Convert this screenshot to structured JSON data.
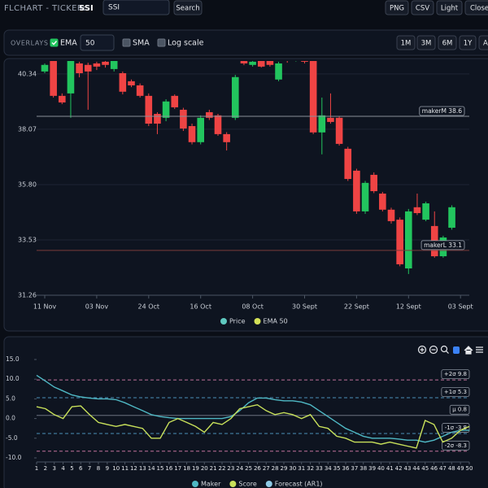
{
  "header": {
    "brand": "FLCHART - TICKER:",
    "ticker": "SSI",
    "search_value": "SSI",
    "search_button": "Search",
    "buttons": [
      "PNG",
      "CSV",
      "Light",
      "Close ("
    ]
  },
  "overlays": {
    "label": "OVERLAYS",
    "ema": {
      "label": "EMA",
      "checked": true,
      "period": "50"
    },
    "sma": {
      "label": "SMA",
      "checked": false
    },
    "log_scale": {
      "label": "Log scale",
      "checked": false
    },
    "ranges": [
      "1M",
      "3M",
      "6M",
      "1Y",
      "AL"
    ]
  },
  "chart_data": [
    {
      "type": "candlestick",
      "categories": [
        "11 Nov",
        null,
        null,
        null,
        null,
        null,
        "03 Nov",
        null,
        null,
        null,
        null,
        null,
        "24 Oct",
        null,
        null,
        null,
        null,
        null,
        "16 Oct",
        null,
        null,
        null,
        null,
        null,
        "08 Oct",
        null,
        null,
        null,
        null,
        null,
        "30 Sept",
        null,
        null,
        null,
        null,
        null,
        "22 Sept",
        null,
        null,
        null,
        null,
        null,
        "12 Sept",
        null,
        null,
        null,
        null,
        null,
        "03 Sept"
      ],
      "open": [
        40.44,
        40.87,
        39.44,
        39.54,
        40.77,
        40.71,
        40.77,
        40.84,
        40.54,
        40.37,
        40.04,
        39.87,
        39.44,
        38.7,
        38.54,
        39.44,
        38.87,
        38.2,
        37.54,
        38.77,
        38.64,
        37.87,
        38.54,
        40.87,
        40.71,
        40.87,
        40.87,
        40.11,
        41.04,
        40.9,
        41.04,
        40.87,
        37.94,
        38.54,
        38.54,
        37.27,
        36.37,
        34.7,
        36.2,
        35.43,
        34.77,
        34.36,
        32.36,
        34.87,
        34.36,
        34.1,
        32.86,
        34.03,
        null
      ],
      "high": [
        40.77,
        40.9,
        39.54,
        40.9,
        40.84,
        40.8,
        40.84,
        40.9,
        40.9,
        40.44,
        40.11,
        39.95,
        39.54,
        38.77,
        39.3,
        39.5,
        38.95,
        38.3,
        38.64,
        38.87,
        38.7,
        37.95,
        40.3,
        40.95,
        40.9,
        40.95,
        40.95,
        40.84,
        41.1,
        41.2,
        41.1,
        40.95,
        39.37,
        39.54,
        38.6,
        37.35,
        36.45,
        35.95,
        36.3,
        35.5,
        34.85,
        34.45,
        34.8,
        35.43,
        35.1,
        34.7,
        33.7,
        34.95,
        null
      ],
      "low": [
        40.37,
        39.37,
        39.1,
        38.54,
        40.2,
        38.87,
        40.5,
        40.6,
        40.44,
        39.5,
        39.8,
        39.37,
        38.2,
        37.87,
        38.4,
        38.9,
        38.0,
        37.45,
        37.45,
        38.45,
        37.8,
        37.2,
        38.45,
        40.7,
        40.64,
        40.6,
        40.64,
        40.04,
        40.8,
        40.85,
        40.77,
        37.87,
        37.04,
        38.3,
        37.4,
        35.95,
        34.6,
        34.6,
        35.45,
        34.7,
        34.2,
        32.45,
        32.13,
        34.55,
        34.3,
        32.8,
        32.8,
        33.95,
        null
      ],
      "close": [
        40.71,
        39.44,
        39.17,
        40.87,
        40.37,
        40.44,
        40.64,
        40.71,
        40.87,
        39.61,
        39.87,
        39.44,
        38.3,
        38.3,
        39.21,
        38.97,
        38.1,
        37.54,
        38.54,
        38.54,
        37.87,
        37.54,
        40.21,
        40.77,
        40.84,
        40.64,
        40.71,
        40.77,
        40.87,
        41.1,
        40.84,
        37.94,
        38.64,
        38.37,
        37.47,
        36.03,
        34.7,
        35.87,
        35.53,
        34.77,
        34.3,
        32.53,
        34.7,
        34.63,
        35.03,
        32.86,
        33.63,
        34.87,
        null
      ],
      "up_color": "#22c55e",
      "down_color": "#ef4444",
      "ylim": [
        31.26,
        40.87
      ],
      "yticks": [
        40.34,
        38.07,
        {
          "value": 35.8,
          "label": "35.80"
        },
        33.53,
        31.26
      ],
      "grid": true,
      "annotations": [
        {
          "label": "makerM 38.6",
          "value": 38.6,
          "color": "#8a8f99"
        },
        {
          "label": "makerL 33.1",
          "value": 33.1,
          "color": "#7a3a3a"
        }
      ],
      "series": [
        {
          "name": "Price",
          "color": "#5fc9c0"
        },
        {
          "name": "EMA 50",
          "color": "#d4e157"
        }
      ]
    },
    {
      "type": "line",
      "x": [
        1,
        2,
        3,
        4,
        5,
        6,
        7,
        8,
        9,
        10,
        11,
        12,
        13,
        14,
        15,
        16,
        17,
        18,
        19,
        20,
        21,
        22,
        23,
        24,
        25,
        26,
        27,
        28,
        29,
        30,
        31,
        32,
        33,
        34,
        35,
        36,
        37,
        38,
        39,
        40,
        41,
        42,
        43,
        44,
        45,
        46,
        47,
        48,
        49,
        50
      ],
      "xlim": [
        1,
        50
      ],
      "xticks": [
        1,
        2,
        3,
        4,
        5,
        6,
        7,
        8,
        9,
        10,
        11,
        12,
        13,
        14,
        15,
        16,
        17,
        18,
        19,
        20,
        21,
        22,
        23,
        24,
        25,
        26,
        27,
        28,
        29,
        30,
        31,
        32,
        33,
        34,
        35,
        36,
        37,
        38,
        39,
        40,
        41,
        42,
        43,
        44,
        45,
        46,
        47,
        48,
        49,
        50
      ],
      "ylim": [
        -10,
        15
      ],
      "yticks": [
        {
          "value": 15,
          "label": "15.0"
        },
        {
          "value": 10,
          "label": "10.0"
        },
        {
          "value": 5,
          "label": "5.0"
        },
        {
          "value": 0,
          "label": "0.0"
        },
        {
          "value": -5,
          "label": "-5.0"
        },
        {
          "value": -10,
          "label": "-10.0"
        }
      ],
      "bands": [
        {
          "label": "+2σ 9.8",
          "value": 9.8,
          "color": "#c0709a",
          "dash": true
        },
        {
          "label": "+1σ 5.3",
          "value": 5.3,
          "color": "#4a8fb8",
          "dash": true
        },
        {
          "label": "μ 0.8",
          "value": 0.8,
          "color": "#6b7280",
          "dash": false
        },
        {
          "label": "-1σ -3.8",
          "value": -3.8,
          "color": "#4a8fb8",
          "dash": true
        },
        {
          "label": "-2σ -8.3",
          "value": -8.3,
          "color": "#c0709a",
          "dash": true
        }
      ],
      "series": [
        {
          "name": "Maker",
          "color": "#4fb8c4",
          "values": [
            11,
            9.5,
            8,
            7,
            6,
            5.5,
            5.2,
            5,
            5,
            4.8,
            4,
            3,
            2,
            1,
            0.5,
            0.2,
            0,
            0,
            0,
            0,
            0,
            0,
            0.5,
            2,
            4,
            5.2,
            5.2,
            4.8,
            4.5,
            4.5,
            4.2,
            3.5,
            2,
            0.5,
            -1,
            -2.5,
            -3.5,
            -4.5,
            -5,
            -5,
            -5,
            -5.2,
            -5.5,
            -5.5,
            -6,
            -5.5,
            -4.5,
            -3.5,
            -3,
            -3
          ]
        },
        {
          "name": "Score",
          "color": "#c8e05a",
          "values": [
            3,
            2.5,
            1,
            0,
            3,
            3.2,
            1,
            -1,
            -1.5,
            -2,
            -1.5,
            -2,
            -2.5,
            -5,
            -5,
            -1,
            0,
            -1,
            -2,
            -3.5,
            -1,
            -1.5,
            0,
            2.5,
            3,
            3.5,
            2,
            1,
            1.5,
            1,
            0,
            1,
            -2,
            -2.5,
            -4.5,
            -5,
            -6,
            -6,
            -6,
            -6.5,
            -6,
            -6.5,
            -7,
            -7.5,
            -0.5,
            -1.5,
            -6,
            -5,
            -3,
            -2
          ]
        },
        {
          "name": "Forecast (AR1)",
          "color": "#8ecae6"
        }
      ]
    }
  ]
}
